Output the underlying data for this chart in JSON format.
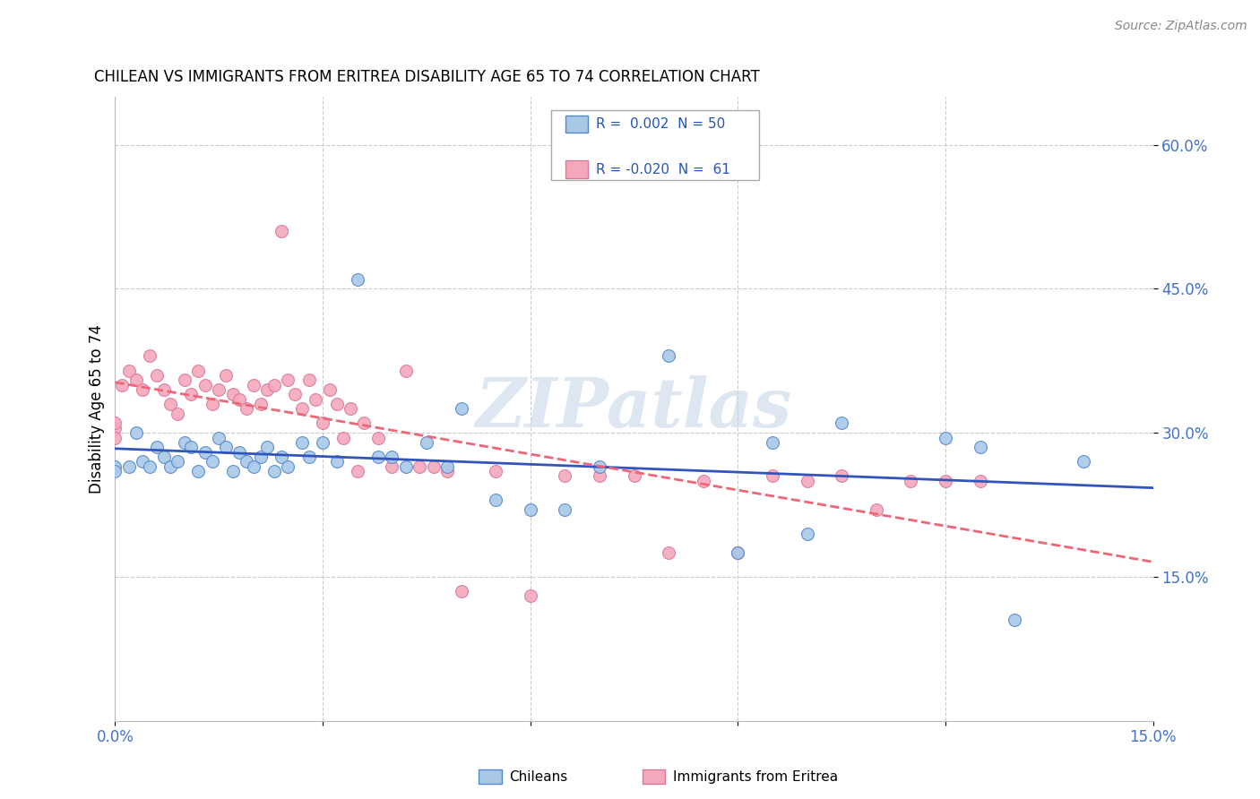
{
  "title": "CHILEAN VS IMMIGRANTS FROM ERITREA DISABILITY AGE 65 TO 74 CORRELATION CHART",
  "source": "Source: ZipAtlas.com",
  "ylabel": "Disability Age 65 to 74",
  "xlim": [
    0.0,
    0.15
  ],
  "ylim": [
    0.0,
    0.65
  ],
  "xticks": [
    0.0,
    0.03,
    0.06,
    0.09,
    0.12,
    0.15
  ],
  "xtick_labels": [
    "0.0%",
    "",
    "",
    "",
    "",
    "15.0%"
  ],
  "ytick_vals": [
    0.15,
    0.3,
    0.45,
    0.6
  ],
  "ytick_labels": [
    "15.0%",
    "30.0%",
    "45.0%",
    "60.0%"
  ],
  "chilean_color": "#a8c8e8",
  "eritrean_color": "#f4a8bc",
  "chilean_edge": "#5588cc",
  "eritrean_edge": "#dd7799",
  "line_chilean": "#3355bb",
  "line_eritrean": "#ee6677",
  "grid_color": "#cccccc",
  "R_chilean": 0.002,
  "N_chilean": 50,
  "R_eritrean": -0.02,
  "N_eritrean": 61,
  "watermark": "ZIPatlas",
  "chileans_x": [
    0.0,
    0.0,
    0.002,
    0.003,
    0.004,
    0.005,
    0.006,
    0.007,
    0.008,
    0.009,
    0.01,
    0.011,
    0.012,
    0.013,
    0.014,
    0.015,
    0.016,
    0.017,
    0.018,
    0.019,
    0.02,
    0.021,
    0.022,
    0.023,
    0.024,
    0.025,
    0.027,
    0.028,
    0.03,
    0.032,
    0.035,
    0.038,
    0.04,
    0.042,
    0.045,
    0.048,
    0.05,
    0.055,
    0.06,
    0.065,
    0.07,
    0.08,
    0.09,
    0.095,
    0.1,
    0.105,
    0.12,
    0.125,
    0.13,
    0.14
  ],
  "chileans_y": [
    0.265,
    0.26,
    0.265,
    0.3,
    0.27,
    0.265,
    0.285,
    0.275,
    0.265,
    0.27,
    0.29,
    0.285,
    0.26,
    0.28,
    0.27,
    0.295,
    0.285,
    0.26,
    0.28,
    0.27,
    0.265,
    0.275,
    0.285,
    0.26,
    0.275,
    0.265,
    0.29,
    0.275,
    0.29,
    0.27,
    0.46,
    0.275,
    0.275,
    0.265,
    0.29,
    0.265,
    0.325,
    0.23,
    0.22,
    0.22,
    0.265,
    0.38,
    0.175,
    0.29,
    0.195,
    0.31,
    0.295,
    0.285,
    0.105,
    0.27
  ],
  "eritreans_x": [
    0.0,
    0.0,
    0.0,
    0.001,
    0.002,
    0.003,
    0.004,
    0.005,
    0.006,
    0.007,
    0.008,
    0.009,
    0.01,
    0.011,
    0.012,
    0.013,
    0.014,
    0.015,
    0.016,
    0.017,
    0.018,
    0.019,
    0.02,
    0.021,
    0.022,
    0.023,
    0.024,
    0.025,
    0.026,
    0.027,
    0.028,
    0.029,
    0.03,
    0.031,
    0.032,
    0.033,
    0.034,
    0.035,
    0.036,
    0.038,
    0.04,
    0.042,
    0.044,
    0.046,
    0.048,
    0.05,
    0.055,
    0.06,
    0.065,
    0.07,
    0.075,
    0.08,
    0.085,
    0.09,
    0.095,
    0.1,
    0.105,
    0.11,
    0.115,
    0.12,
    0.125
  ],
  "eritreans_y": [
    0.305,
    0.31,
    0.295,
    0.35,
    0.365,
    0.355,
    0.345,
    0.38,
    0.36,
    0.345,
    0.33,
    0.32,
    0.355,
    0.34,
    0.365,
    0.35,
    0.33,
    0.345,
    0.36,
    0.34,
    0.335,
    0.325,
    0.35,
    0.33,
    0.345,
    0.35,
    0.51,
    0.355,
    0.34,
    0.325,
    0.355,
    0.335,
    0.31,
    0.345,
    0.33,
    0.295,
    0.325,
    0.26,
    0.31,
    0.295,
    0.265,
    0.365,
    0.265,
    0.265,
    0.26,
    0.135,
    0.26,
    0.13,
    0.255,
    0.255,
    0.255,
    0.175,
    0.25,
    0.175,
    0.255,
    0.25,
    0.255,
    0.22,
    0.25,
    0.25,
    0.25
  ]
}
